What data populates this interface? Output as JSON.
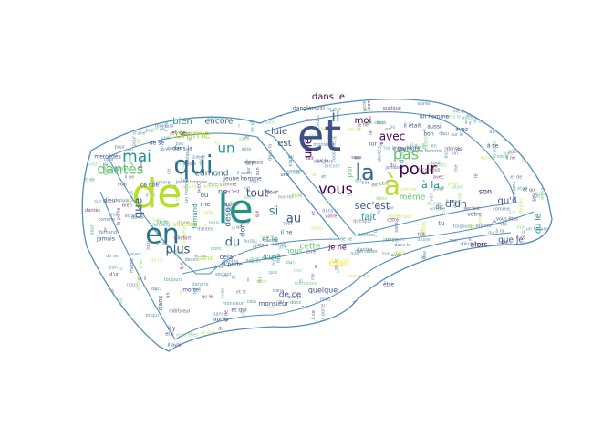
{
  "cloud": {
    "palette": {
      "outline": "#4f8dbf",
      "shade_a": "#3b528b",
      "shade_b": "#21918c",
      "shade_c": "#5ec962",
      "shade_d": "#b8de29",
      "shade_e": "#440154",
      "shade_f": "#2c728e",
      "shade_g": "#31688e",
      "shade_h": "#fde725"
    },
    "words": [
      {
        "id": "et",
        "text": "et",
        "shade": "shade_a"
      },
      {
        "id": "de",
        "text": "de",
        "shade": "shade_d"
      },
      {
        "id": "le",
        "text": "le",
        "shade": "shade_b"
      },
      {
        "id": "en",
        "text": "en",
        "shade": "shade_f"
      },
      {
        "id": "qui",
        "text": "qui",
        "shade": "shade_f"
      },
      {
        "id": "a",
        "text": "à",
        "shade": "shade_d"
      },
      {
        "id": "la",
        "text": "la",
        "shade": "shade_g"
      },
      {
        "id": "pour",
        "text": "pour",
        "shade": "shade_e"
      },
      {
        "id": "pas",
        "text": "pas",
        "shade": "shade_c"
      },
      {
        "id": "vous",
        "text": "vous",
        "shade": "shade_e"
      },
      {
        "id": "il",
        "text": "il",
        "shade": "shade_g"
      },
      {
        "id": "mai",
        "text": "mai",
        "shade": "shade_b"
      },
      {
        "id": "un",
        "text": "un",
        "shade": "shade_b"
      },
      {
        "id": "dantes",
        "text": "dantès",
        "shade": "shade_c"
      },
      {
        "id": "comme",
        "text": "comme",
        "shade": "shade_d"
      },
      {
        "id": "au",
        "text": "au",
        "shade": "shade_a"
      },
      {
        "id": "si",
        "text": "si",
        "shade": "shade_b"
      },
      {
        "id": "du",
        "text": "du",
        "shade": "shade_g"
      },
      {
        "id": "plus",
        "text": "plus",
        "shade": "shade_a"
      },
      {
        "id": "tout",
        "text": "tout",
        "shade": "shade_a"
      },
      {
        "id": "que",
        "text": "que",
        "shade": "shade_a"
      },
      {
        "id": "avec",
        "text": "avec",
        "shade": "shade_e"
      },
      {
        "id": "une",
        "text": "une",
        "shade": "shade_e"
      },
      {
        "id": "luie",
        "text": "luie",
        "shade": "shade_a"
      },
      {
        "id": "est",
        "text": "est",
        "shade": "shade_a"
      },
      {
        "id": "moi",
        "text": "moi",
        "shade": "shade_e"
      },
      {
        "id": "a-la",
        "text": "à la",
        "shade": "shade_b"
      },
      {
        "id": "sec-est",
        "text": "sec'est",
        "shade": "shade_a"
      },
      {
        "id": "fait",
        "text": "fait",
        "shade": "shade_b"
      },
      {
        "id": "d-un",
        "text": "d'un",
        "shade": "shade_g"
      },
      {
        "id": "qu-il",
        "text": "qu'il",
        "shade": "shade_a"
      },
      {
        "id": "meme",
        "text": "même",
        "shade": "shade_c"
      },
      {
        "id": "dans-le",
        "text": "dans le",
        "shade": "shade_e"
      },
      {
        "id": "bien",
        "text": "bien",
        "shade": "shade_b"
      },
      {
        "id": "encore",
        "text": "encore",
        "shade": "shade_a"
      },
      {
        "id": "edmond",
        "text": "edmond",
        "shade": "shade_g"
      },
      {
        "id": "ne",
        "text": "ne",
        "shade": "shade_a"
      },
      {
        "id": "donc",
        "text": "donc",
        "shade": "shade_g"
      },
      {
        "id": "deson",
        "text": "deson",
        "shade": "shade_g"
      },
      {
        "id": "cette",
        "text": "cette",
        "shade": "shade_c"
      },
      {
        "id": "je-ne",
        "text": "je ne",
        "shade": "shade_e"
      },
      {
        "id": "etait",
        "text": "était",
        "shade": "shade_h"
      },
      {
        "id": "que-je",
        "text": "que je",
        "shade": "shade_a"
      },
      {
        "id": "qu-le",
        "text": "qu le",
        "shade": "shade_b"
      },
      {
        "id": "alors",
        "text": "alors",
        "shade": "shade_e"
      },
      {
        "id": "de-ce",
        "text": "de ce",
        "shade": "shade_a"
      },
      {
        "id": "quelque",
        "text": "quelque",
        "shade": "shade_a"
      },
      {
        "id": "ou",
        "text": "ou",
        "shade": "shade_a"
      },
      {
        "id": "me",
        "text": "me",
        "shade": "shade_g"
      },
      {
        "id": "nous",
        "text": "nous",
        "shade": "shade_c"
      },
      {
        "id": "sans",
        "text": "sans",
        "shade": "shade_d"
      },
      {
        "id": "dit",
        "text": "dit",
        "shade": "shade_a"
      },
      {
        "id": "monsieur",
        "text": "monsieur",
        "shade": "shade_a"
      },
      {
        "id": "par",
        "text": "par",
        "shade": "shade_c"
      },
      {
        "id": "fernand",
        "text": "fernand",
        "shade": "shade_b"
      },
      {
        "id": "villefort",
        "text": "villefort",
        "shade": "shade_d"
      },
      {
        "id": "dans",
        "text": "dans",
        "shade": "shade_a"
      },
      {
        "id": "cela",
        "text": "cela",
        "shade": "shade_a"
      },
      {
        "id": "son",
        "text": "son",
        "shade": "shade_e"
      },
      {
        "id": "d-une",
        "text": "d'une",
        "shade": "shade_b"
      },
      {
        "id": "et-le",
        "text": "et le",
        "shade": "shade_b"
      },
      {
        "id": "la-porte",
        "text": "la porte",
        "shade": "shade_a"
      },
      {
        "id": "tu",
        "text": "tu",
        "shade": "shade_b"
      },
      {
        "id": "apres",
        "text": "après",
        "shade": "shade_a"
      },
      {
        "id": "et-qui",
        "text": "et qui",
        "shade": "shade_a"
      },
      {
        "id": "mercedes",
        "text": "mercédès",
        "shade": "shade_a"
      },
      {
        "id": "jamais",
        "text": "jamais",
        "shade": "shade_a"
      },
      {
        "id": "morrel",
        "text": "morrel",
        "shade": "shade_a"
      },
      {
        "id": "danglars",
        "text": "danglars",
        "shade": "shade_a"
      },
      {
        "id": "toujours",
        "text": "toujours",
        "shade": "shade_a"
      },
      {
        "id": "depuis",
        "text": "depuis",
        "shade": "shade_a"
      },
      {
        "id": "sur-le",
        "text": "sur le",
        "shade": "shade_a"
      },
      {
        "id": "jeune-homme",
        "text": "jeune homme",
        "shade": "shade_a"
      },
      {
        "id": "a-ce",
        "text": "à ce",
        "shade": "shade_a"
      },
      {
        "id": "bon",
        "text": "bon",
        "shade": "shade_a"
      },
      {
        "id": "aussi",
        "text": "aussi",
        "shade": "shade_a"
      },
      {
        "id": "il-etait",
        "text": "il était",
        "shade": "shade_a"
      },
      {
        "id": "deja",
        "text": "déjà",
        "shade": "shade_d"
      },
      {
        "id": "etre",
        "text": "être",
        "shade": "shade_a"
      },
      {
        "id": "il-y",
        "text": "il y",
        "shade": "shade_a"
      },
      {
        "id": "il-avait",
        "text": "il avait",
        "shade": "shade_a"
      },
      {
        "id": "dieu",
        "text": "dieu",
        "shade": "shade_a"
      },
      {
        "id": "voir",
        "text": "voir",
        "shade": "shade_a"
      },
      {
        "id": "votre",
        "text": "votre",
        "shade": "shade_a"
      },
      {
        "id": "vous-etes",
        "text": "vous êtes",
        "shade": "shade_a"
      },
      {
        "id": "et-il",
        "text": "et il",
        "shade": "shade_a"
      },
      {
        "id": "de-se",
        "text": "de se",
        "shade": "shade_a"
      },
      {
        "id": "dans-la",
        "text": "dans la",
        "shade": "shade_a"
      },
      {
        "id": "et-de",
        "text": "et de",
        "shade": "shade_a"
      },
      {
        "id": "ce-que",
        "text": "ce que",
        "shade": "shade_a"
      },
      {
        "id": "il-ne",
        "text": "il ne",
        "shade": "shade_a"
      },
      {
        "id": "avez",
        "text": "avez",
        "shade": "shade_a"
      },
      {
        "id": "un-homme",
        "text": "un homme",
        "shade": "shade_a"
      }
    ]
  }
}
